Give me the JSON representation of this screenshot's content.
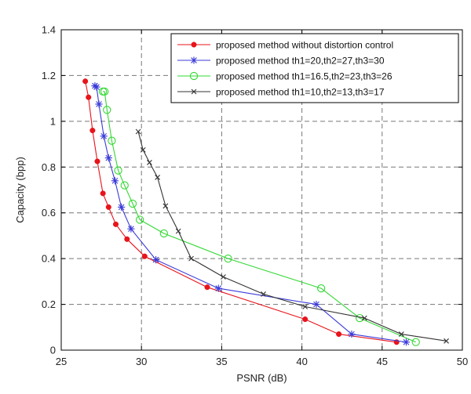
{
  "chart_data": {
    "type": "line",
    "title": "",
    "xlabel": "PSNR (dB)",
    "ylabel": "Capacity (bpp)",
    "xlim": [
      25,
      50
    ],
    "ylim": [
      0,
      1.4
    ],
    "x_ticks": [
      "25",
      "30",
      "35",
      "40",
      "45",
      "50"
    ],
    "y_ticks": [
      "0",
      "0.2",
      "0.4",
      "0.6",
      "0.8",
      "1",
      "1.2",
      "1.4"
    ],
    "grid": true,
    "legend_position": "top-right",
    "series": [
      {
        "name": "proposed method without distortion control",
        "color": "#e8141b",
        "marker": "dot",
        "x": [
          26.5,
          26.7,
          26.95,
          27.25,
          27.6,
          27.95,
          28.4,
          29.1,
          30.2,
          34.1,
          40.2,
          42.3,
          45.9
        ],
        "y": [
          1.175,
          1.105,
          0.96,
          0.825,
          0.685,
          0.625,
          0.55,
          0.485,
          0.41,
          0.275,
          0.135,
          0.07,
          0.035
        ]
      },
      {
        "name": "proposed method th1=20,th2=27,th3=30",
        "color": "#3b3bd8",
        "marker": "star",
        "x": [
          27.1,
          27.2,
          27.35,
          27.65,
          27.95,
          28.35,
          28.75,
          29.35,
          30.9,
          34.8,
          40.9,
          43.1,
          46.5
        ],
        "y": [
          1.155,
          1.15,
          1.075,
          0.935,
          0.84,
          0.74,
          0.625,
          0.53,
          0.395,
          0.27,
          0.2,
          0.07,
          0.035
        ]
      },
      {
        "name": "proposed method th1=16.5,th2=23,th3=26",
        "color": "#33d833",
        "marker": "circle",
        "x": [
          27.6,
          27.7,
          27.85,
          28.15,
          28.55,
          28.95,
          29.45,
          29.9,
          31.4,
          35.4,
          41.2,
          43.6,
          47.1
        ],
        "y": [
          1.13,
          1.13,
          1.05,
          0.915,
          0.785,
          0.72,
          0.64,
          0.57,
          0.51,
          0.4,
          0.27,
          0.14,
          0.035
        ]
      },
      {
        "name": "proposed method th1=10,th2=13,th3=17",
        "color": "#333333",
        "marker": "x",
        "x": [
          29.8,
          30.1,
          30.5,
          31.0,
          31.5,
          32.3,
          33.1,
          35.1,
          37.6,
          40.2,
          43.9,
          46.2,
          49.0
        ],
        "y": [
          0.955,
          0.875,
          0.82,
          0.755,
          0.63,
          0.52,
          0.4,
          0.32,
          0.245,
          0.19,
          0.14,
          0.07,
          0.04
        ]
      }
    ]
  }
}
